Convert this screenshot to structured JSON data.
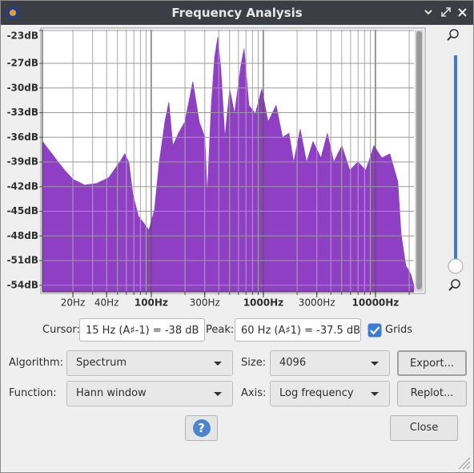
{
  "window": {
    "title": "Frequency Analysis"
  },
  "chart_data": {
    "type": "area",
    "x_scale": "log",
    "grid": true,
    "color": "#8e3fc4",
    "x": [
      10.7,
      12.2,
      14.4,
      16.9,
      20,
      25.5,
      32.7,
      41.8,
      53.5,
      58.1,
      63.1,
      68.5,
      76.9,
      87.7,
      95.2,
      106.8,
      117.9,
      132.3,
      143.6,
      156,
      175,
      199.5,
      235,
      268,
      301,
      316,
      343,
      367,
      392,
      418,
      454,
      501,
      553,
      631,
      674,
      744,
      848,
      968,
      1104,
      1301,
      1484,
      1693,
      1866,
      2131,
      2431,
      2773,
      3266,
      3725,
      4253,
      5012,
      5902,
      6966,
      8204,
      9683,
      11400,
      13450,
      15850,
      16930,
      18660,
      20610,
      22030
    ],
    "values": [
      -36.5,
      -37.5,
      -38.8,
      -40.0,
      -41.1,
      -41.8,
      -41.6,
      -40.9,
      -38.8,
      -38.0,
      -39.0,
      -42.9,
      -45.6,
      -46.6,
      -47.3,
      -44.8,
      -39.0,
      -34.1,
      -31.7,
      -37.0,
      -35.5,
      -34.1,
      -29.2,
      -34.1,
      -36.0,
      -42.9,
      -32.1,
      -26.3,
      -23.8,
      -27.7,
      -36.0,
      -30.1,
      -33.1,
      -27.2,
      -25.2,
      -32.1,
      -33.1,
      -30.1,
      -34.1,
      -32.1,
      -36.0,
      -35.5,
      -39.0,
      -35.0,
      -39.0,
      -36.5,
      -38.5,
      -35.5,
      -39.0,
      -37.0,
      -40.0,
      -39.0,
      -40.0,
      -37.0,
      -38.5,
      -38.0,
      -41.4,
      -47.7,
      -51.6,
      -52.6,
      -54.0
    ],
    "xlim": [
      10.7,
      22050
    ],
    "ylim": [
      -54.8,
      -22.9
    ],
    "xticks": [
      {
        "value": 20,
        "label": "20Hz"
      },
      {
        "value": 40,
        "label": "40Hz"
      },
      {
        "value": 100,
        "label": "100Hz"
      },
      {
        "value": 300,
        "label": "300Hz"
      },
      {
        "value": 1000,
        "label": "1000Hz"
      },
      {
        "value": 3000,
        "label": "3000Hz"
      },
      {
        "value": 10000,
        "label": "10000Hz"
      }
    ],
    "yticks": [
      {
        "value": -23,
        "label": "-23dB"
      },
      {
        "value": -27,
        "label": "-27dB"
      },
      {
        "value": -30,
        "label": "-30dB"
      },
      {
        "value": -33,
        "label": "-33dB"
      },
      {
        "value": -36,
        "label": "-36dB"
      },
      {
        "value": -39,
        "label": "-39dB"
      },
      {
        "value": -42,
        "label": "-42dB"
      },
      {
        "value": -45,
        "label": "-45dB"
      },
      {
        "value": -48,
        "label": "-48dB"
      },
      {
        "value": -51,
        "label": "-51dB"
      },
      {
        "value": -54,
        "label": "-54dB"
      }
    ]
  },
  "controls": {
    "cursor_label": "Cursor:",
    "cursor_value": "15 Hz (A♯-1) = -38 dB",
    "peak_label": "Peak:",
    "peak_value": "60 Hz (A♯1) = -37.5 dB",
    "grids_label": "Grids",
    "algorithm_label": "Algorithm:",
    "algorithm_value": "Spectrum",
    "size_label": "Size:",
    "size_value": "4096",
    "export_button": "Export...",
    "function_label": "Function:",
    "function_value": "Hann window",
    "axis_label": "Axis:",
    "axis_value": "Log frequency",
    "replot_button": "Replot...",
    "help_button": "?",
    "close_button": "Close"
  }
}
